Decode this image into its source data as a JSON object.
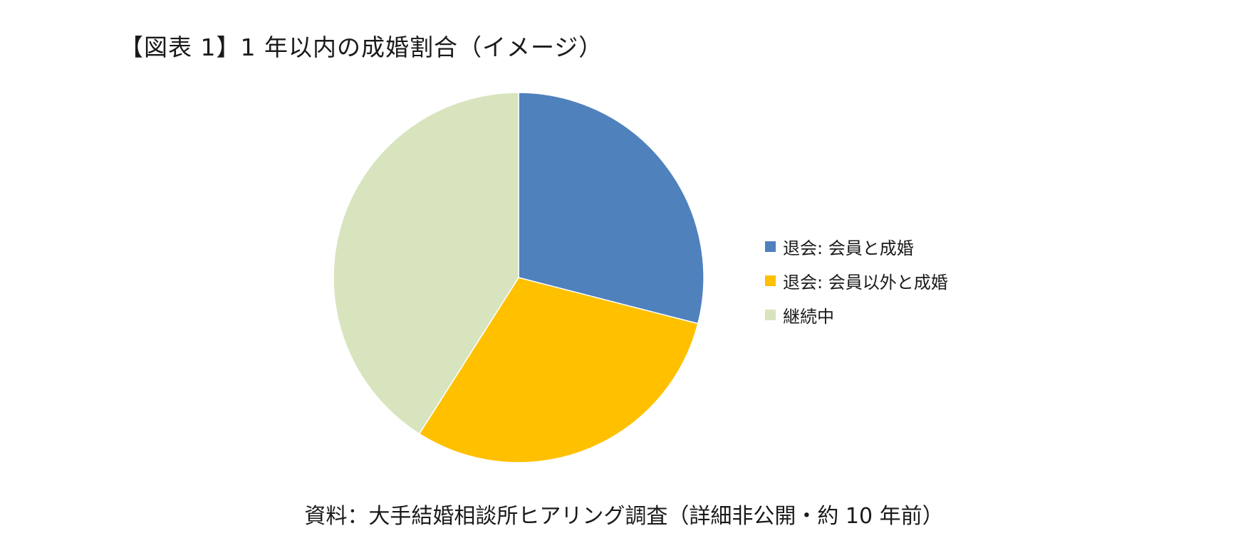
{
  "title": "【図表 1】1 年以内の成婚割合（イメージ）",
  "source": "資料：大手結婚相談所ヒアリング調査（詳細非公開・約 10 年前）",
  "chart_data": {
    "type": "pie",
    "title": "【図表 1】1 年以内の成婚割合（イメージ）",
    "categories": [
      "退会: 会員と成婚",
      "退会: 会員以外と成婚",
      "継続中"
    ],
    "values": [
      29,
      30,
      41
    ],
    "colors": [
      "#4F81BD",
      "#FFC000",
      "#D7E4BD"
    ],
    "legend_position": "right",
    "start_angle": "top",
    "direction": "clockwise"
  }
}
